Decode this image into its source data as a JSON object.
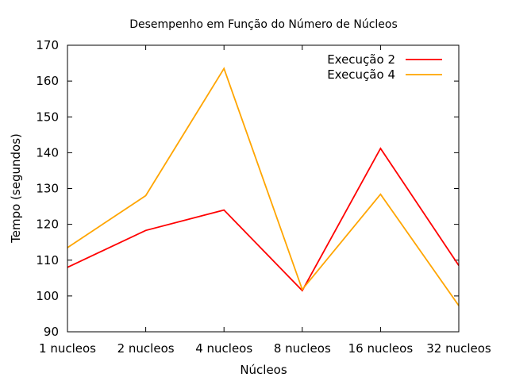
{
  "chart_data": {
    "type": "line",
    "title": "Desempenho em Função do Número de Núcleos",
    "xlabel": "Núcleos",
    "ylabel": "Tempo (segundos)",
    "categories": [
      "1 nucleos",
      "2 nucleos",
      "4 nucleos",
      "8 nucleos",
      "16 nucleos",
      "32 nucleos"
    ],
    "ylim": [
      90,
      170
    ],
    "yticks": [
      90,
      100,
      110,
      120,
      130,
      140,
      150,
      160,
      170
    ],
    "grid": false,
    "legend_position": "top-right",
    "series": [
      {
        "name": "Execução 2",
        "color": "#ff0000",
        "values": [
          108,
          118.3,
          124,
          101.5,
          141.2,
          108.5
        ]
      },
      {
        "name": "Execução 4",
        "color": "#ffa500",
        "values": [
          113.5,
          128,
          163.5,
          101.8,
          128.4,
          97.3
        ]
      }
    ]
  }
}
